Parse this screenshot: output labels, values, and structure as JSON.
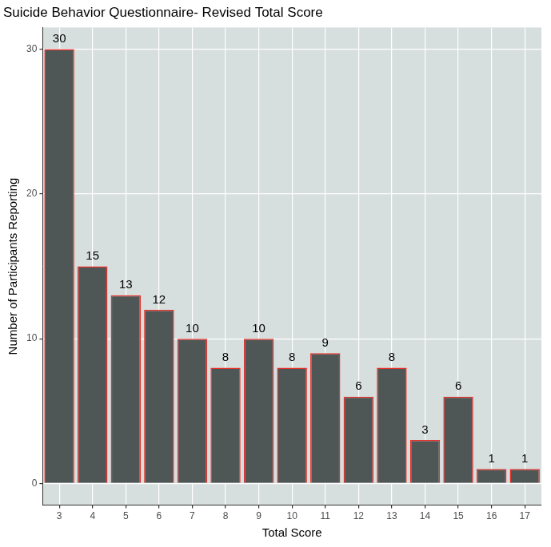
{
  "chart_data": {
    "type": "bar",
    "title": "Suicide Behavior Questionnaire- Revised Total Score",
    "x_label": "Total Score",
    "y_label": "Number of Participants Reporting",
    "categories": [
      "3",
      "4",
      "5",
      "6",
      "7",
      "8",
      "9",
      "10",
      "11",
      "12",
      "13",
      "14",
      "15",
      "16",
      "17"
    ],
    "values": [
      30,
      15,
      13,
      12,
      10,
      8,
      10,
      8,
      9,
      6,
      8,
      3,
      6,
      1,
      1
    ],
    "color": "#4f5756",
    "ylim": [
      -1.5,
      31.5
    ],
    "yticks": [
      0,
      10,
      20,
      30
    ],
    "grid": true,
    "data_labels": true
  }
}
